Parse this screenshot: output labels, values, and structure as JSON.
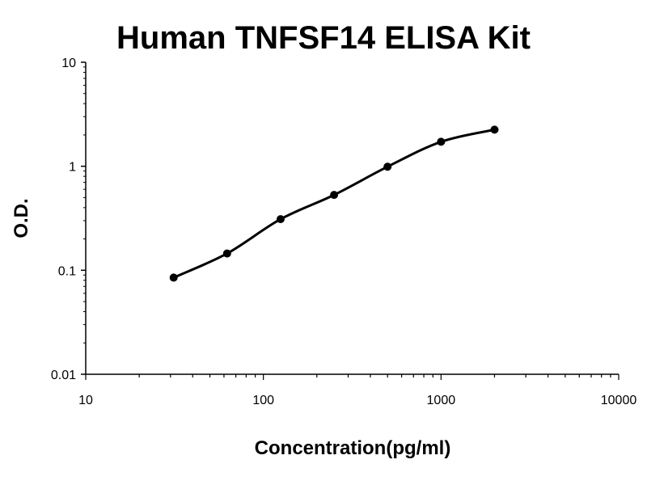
{
  "chart_data": {
    "type": "line",
    "title": "Human TNFSF14 ELISA Kit",
    "xlabel": "Concentration(pg/ml)",
    "ylabel": "O.D.",
    "x_scale": "log",
    "y_scale": "log",
    "xlim": [
      10,
      10000
    ],
    "ylim": [
      0.01,
      10
    ],
    "x_ticks": [
      "10",
      "100",
      "1000",
      "10000"
    ],
    "y_ticks": [
      "0.01",
      "0.1",
      "1",
      "10"
    ],
    "grid": false,
    "legend": "none",
    "series": [
      {
        "x": [
          31.25,
          62.5,
          125,
          250,
          500,
          1000,
          2000
        ],
        "y": [
          0.085,
          0.145,
          0.31,
          0.53,
          0.99,
          1.72,
          2.25
        ]
      }
    ],
    "colors": {
      "line": "#000000",
      "axis": "#000000"
    }
  }
}
